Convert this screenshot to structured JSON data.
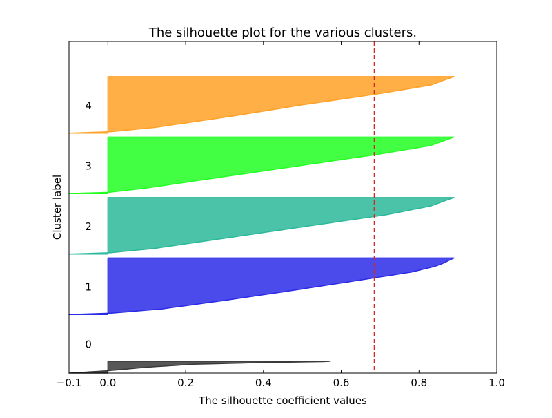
{
  "chart_data": {
    "type": "area",
    "title": "The silhouette plot for the various clusters.",
    "xlabel": "The silhouette coefficient values",
    "ylabel": "Cluster label",
    "xlim": [
      -0.1,
      1.0
    ],
    "ylim": [
      0,
      85
    ],
    "xticks": [
      -0.1,
      0.0,
      0.2,
      0.4,
      0.6,
      0.8,
      1.0
    ],
    "xtick_labels": [
      "−0.1",
      "0.0",
      "0.2",
      "0.4",
      "0.6",
      "0.8",
      "1.0"
    ],
    "yticks": [],
    "grid": false,
    "average_silhouette_score": 0.685,
    "average_line_color": "#d62728",
    "clusters": [
      {
        "label": "0",
        "color": "#3a3a3a",
        "y_lower": 0,
        "y_upper": 3,
        "profile": [
          [
            0,
            -0.1
          ],
          [
            0.2,
            0.0
          ],
          [
            0.5,
            0.1
          ],
          [
            0.75,
            0.22
          ],
          [
            0.9,
            0.4
          ],
          [
            0.97,
            0.55
          ],
          [
            1,
            0.57
          ]
        ]
      },
      {
        "label": "1",
        "color": "#2b2ae6",
        "y_lower": 15,
        "y_upper": 29.5,
        "profile": [
          [
            0,
            -0.1
          ],
          [
            0.02,
            0.0
          ],
          [
            0.1,
            0.14
          ],
          [
            0.25,
            0.3
          ],
          [
            0.4,
            0.45
          ],
          [
            0.6,
            0.64
          ],
          [
            0.75,
            0.78
          ],
          [
            0.85,
            0.84
          ],
          [
            0.9,
            0.86
          ],
          [
            0.95,
            0.875
          ],
          [
            1,
            0.89
          ]
        ]
      },
      {
        "label": "2",
        "color": "#2ab89a",
        "y_lower": 30.5,
        "y_upper": 45,
        "profile": [
          [
            0,
            -0.1
          ],
          [
            0.02,
            0.0
          ],
          [
            0.1,
            0.12
          ],
          [
            0.3,
            0.32
          ],
          [
            0.5,
            0.52
          ],
          [
            0.7,
            0.72
          ],
          [
            0.85,
            0.83
          ],
          [
            0.95,
            0.87
          ],
          [
            1,
            0.89
          ]
        ]
      },
      {
        "label": "3",
        "color": "#22ff22",
        "y_lower": 46,
        "y_upper": 60.5,
        "profile": [
          [
            0,
            -0.1
          ],
          [
            0.02,
            0.0
          ],
          [
            0.1,
            0.1
          ],
          [
            0.3,
            0.3
          ],
          [
            0.5,
            0.5
          ],
          [
            0.7,
            0.7
          ],
          [
            0.85,
            0.83
          ],
          [
            0.95,
            0.87
          ],
          [
            1,
            0.89
          ]
        ]
      },
      {
        "label": "4",
        "color": "#ffa126",
        "y_lower": 61.5,
        "y_upper": 76,
        "profile": [
          [
            0,
            -0.1
          ],
          [
            0.02,
            0.0
          ],
          [
            0.1,
            0.12
          ],
          [
            0.3,
            0.32
          ],
          [
            0.5,
            0.5
          ],
          [
            0.7,
            0.7
          ],
          [
            0.85,
            0.83
          ],
          [
            0.95,
            0.87
          ],
          [
            1,
            0.89
          ]
        ]
      }
    ]
  }
}
